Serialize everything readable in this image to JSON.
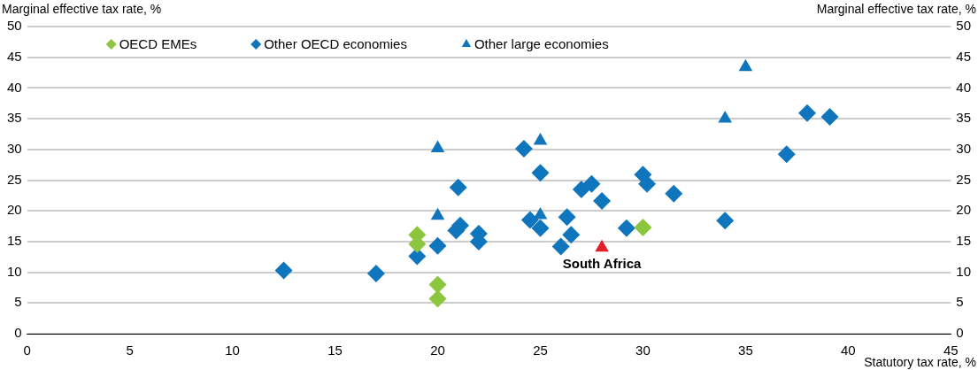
{
  "chart_data": {
    "type": "scatter",
    "xlabel": "Statutory tax rate, %",
    "ylabel": "Marginal effective tax rate, %",
    "y2label": "Marginal effective tax rate, %",
    "xlim": [
      0,
      45
    ],
    "xticks": [
      0,
      5,
      10,
      15,
      20,
      25,
      30,
      35,
      40,
      45
    ],
    "ylim": [
      0,
      50
    ],
    "yticks": [
      0,
      5,
      10,
      15,
      20,
      25,
      30,
      35,
      40,
      45,
      50
    ],
    "y2lim": [
      0,
      50
    ],
    "y2ticks": [
      0,
      5,
      10,
      15,
      20,
      25,
      30,
      35,
      40,
      45,
      50
    ],
    "grid": "y",
    "legend": "top left",
    "series": [
      {
        "name": "OECD EMEs",
        "color": "#8cc63f",
        "marker": "diamond",
        "x": [
          19,
          19,
          20,
          20,
          30
        ],
        "values": [
          16.1,
          14.6,
          8.0,
          5.7,
          17.3
        ]
      },
      {
        "name": "Other OECD economies",
        "color": "#0f75bc",
        "marker": "diamond",
        "x": [
          12.5,
          17,
          19,
          20,
          21,
          20.9,
          21.1,
          22,
          22,
          24.2,
          24.5,
          25,
          25,
          26.3,
          26.5,
          26.0,
          27.0,
          27.5,
          28.0,
          29.2,
          30.0,
          30.2,
          31.5,
          34.0,
          37.0,
          38.0,
          39.1
        ],
        "values": [
          10.3,
          9.8,
          12.6,
          14.3,
          23.8,
          16.8,
          17.6,
          16.3,
          15.0,
          30.1,
          18.5,
          26.2,
          17.2,
          19.0,
          16.1,
          14.2,
          23.5,
          24.4,
          21.6,
          17.2,
          25.9,
          24.4,
          22.8,
          18.4,
          29.2,
          35.9,
          35.3
        ]
      },
      {
        "name": "Other large economies",
        "color": "#0f75bc",
        "marker": "triangle",
        "x": [
          20,
          20,
          25,
          25,
          34,
          35
        ],
        "values": [
          30.2,
          19.2,
          31.4,
          19.3,
          35.0,
          43.4
        ]
      },
      {
        "color": "#e0202a",
        "marker": "triangle",
        "x": [
          28
        ],
        "values": [
          14.0
        ]
      }
    ],
    "annotations": [
      {
        "text": "South Africa",
        "x": 28,
        "y": 14.0
      }
    ]
  }
}
